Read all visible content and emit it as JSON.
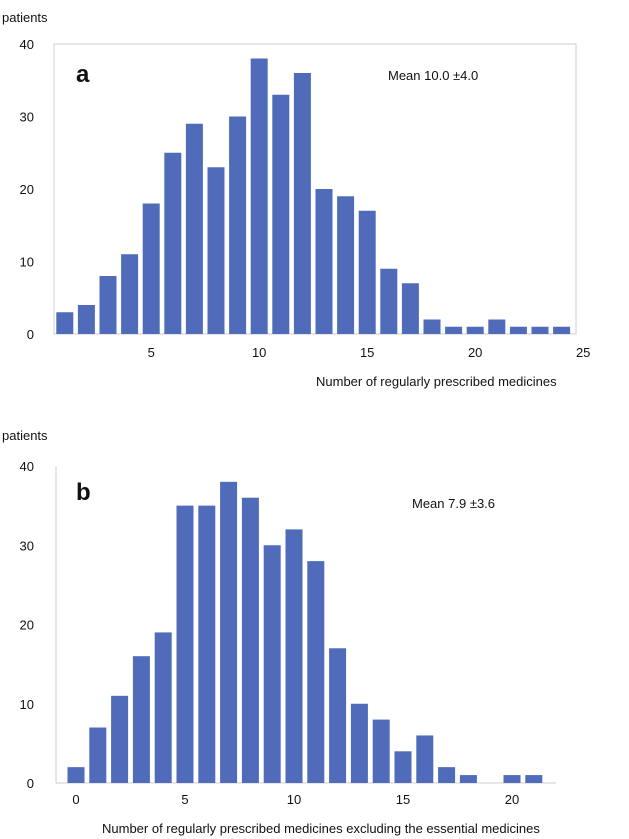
{
  "chart_data": [
    {
      "type": "bar",
      "panel_label": "a",
      "ylabel": "patients",
      "xlabel": "Number of regularly prescribed medicines",
      "annotation": "Mean 10.0 ±4.0",
      "bar_color": "#4f6bba",
      "frame": true,
      "ylim": [
        0,
        40
      ],
      "yticks": [
        0,
        10,
        20,
        30,
        40
      ],
      "xticks": [
        5,
        10,
        15,
        20,
        25
      ],
      "x": [
        1,
        2,
        3,
        4,
        5,
        6,
        7,
        8,
        9,
        10,
        11,
        12,
        13,
        14,
        15,
        16,
        17,
        18,
        19,
        20,
        21,
        22,
        23,
        24
      ],
      "values": [
        3,
        4,
        8,
        11,
        18,
        25,
        29,
        23,
        30,
        38,
        33,
        36,
        20,
        19,
        17,
        9,
        7,
        2,
        1,
        1,
        2,
        1,
        1,
        1
      ]
    },
    {
      "type": "bar",
      "panel_label": "b",
      "ylabel": "patients",
      "xlabel": "Number of regularly prescribed medicines excluding the essential medicines",
      "annotation": "Mean 7.9 ±3.6",
      "bar_color": "#4f6bba",
      "frame": false,
      "ylim": [
        0,
        40
      ],
      "yticks": [
        0,
        10,
        20,
        30,
        40
      ],
      "xticks": [
        0,
        5,
        10,
        15,
        20
      ],
      "x": [
        0,
        1,
        2,
        3,
        4,
        5,
        6,
        7,
        8,
        9,
        10,
        11,
        12,
        13,
        14,
        15,
        16,
        17,
        18,
        19,
        20,
        21
      ],
      "values": [
        2,
        7,
        11,
        16,
        19,
        35,
        35,
        38,
        36,
        30,
        32,
        28,
        17,
        10,
        8,
        4,
        6,
        2,
        1,
        0,
        1,
        1
      ]
    }
  ]
}
